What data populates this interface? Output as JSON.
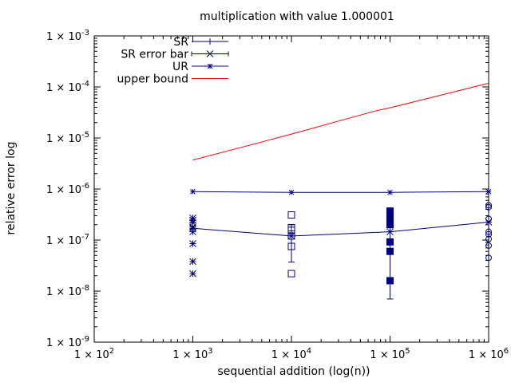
{
  "chart_data": {
    "type": "scatter",
    "title": "multiplication with value 1.000001",
    "xlabel": "sequential addition (log(n))",
    "ylabel": "relative error log",
    "x_scale": "log",
    "y_scale": "log",
    "xlim": [
      100,
      1000000
    ],
    "ylim": [
      1e-09,
      0.001
    ],
    "x_ticks": [
      {
        "value": 100,
        "base": "1 × 10",
        "exp": "2"
      },
      {
        "value": 1000,
        "base": "1 × 10",
        "exp": "3"
      },
      {
        "value": 10000,
        "base": "1 × 10",
        "exp": "4"
      },
      {
        "value": 100000,
        "base": "1 × 10",
        "exp": "5"
      },
      {
        "value": 1000000,
        "base": "1 × 10",
        "exp": "6"
      }
    ],
    "y_ticks": [
      {
        "value": 1e-09,
        "base": "1 × 10",
        "exp": "-9"
      },
      {
        "value": 1e-08,
        "base": "1 × 10",
        "exp": "-8"
      },
      {
        "value": 1e-07,
        "base": "1 × 10",
        "exp": "-7"
      },
      {
        "value": 1e-06,
        "base": "1 × 10",
        "exp": "-6"
      },
      {
        "value": 1e-05,
        "base": "1 × 10",
        "exp": "-5"
      },
      {
        "value": 0.0001,
        "base": "1 × 10",
        "exp": "-4"
      },
      {
        "value": 0.001,
        "base": "1 × 10",
        "exp": "-3"
      }
    ],
    "legend_position": "top-left",
    "grid": false,
    "series": [
      {
        "name": "SR",
        "color": "#00007f",
        "marker": "plus",
        "x": [
          1000,
          10000,
          100000,
          1000000
        ],
        "y": [
          1.7e-07,
          1.2e-07,
          1.45e-07,
          2.25e-07
        ]
      },
      {
        "name": "SR error bar",
        "color": "#00007f",
        "marker": "cross",
        "x": [
          1000,
          10000,
          100000,
          1000000
        ],
        "y": [
          1.7e-07,
          1.2e-07,
          1.45e-07,
          2.25e-07
        ],
        "low": [
          1.7e-07,
          3.7e-08,
          7e-09,
          2.25e-07
        ],
        "high": [
          1.7e-07,
          2e-07,
          2.9e-07,
          2.25e-07
        ]
      },
      {
        "name": "UR",
        "color": "#00007f",
        "marker": "star",
        "x": [
          1000,
          10000,
          100000,
          1000000
        ],
        "y": [
          8.9e-07,
          8.6e-07,
          8.6e-07,
          8.9e-07
        ]
      },
      {
        "name": "upper bound",
        "color": "#ff0000",
        "marker": "none",
        "x": [
          1000,
          4500,
          10000,
          70000,
          100000,
          1000000
        ],
        "y": [
          3.7e-06,
          7.9e-06,
          1.19e-05,
          3.36e-05,
          3.9e-05,
          0.000118
        ]
      }
    ],
    "samples": [
      {
        "x": 1000,
        "marker": "asterisk",
        "y": [
          2.2e-08,
          3.8e-08,
          8.5e-08,
          1.45e-07,
          1.8e-07,
          2.2e-07,
          2.45e-07,
          2.7e-07
        ]
      },
      {
        "x": 10000,
        "marker": "square-open",
        "y": [
          2.2e-08,
          7.5e-08,
          1.2e-07,
          1.55e-07,
          1.75e-07,
          3.1e-07
        ]
      },
      {
        "x": 100000,
        "marker": "square-filled",
        "y": [
          1.6e-08,
          6e-08,
          9.2e-08,
          2e-07,
          2.5e-07,
          2.8e-07,
          3.1e-07,
          3.4e-07,
          3.7e-07
        ]
      },
      {
        "x": 1000000,
        "marker": "circle-open",
        "y": [
          4.5e-08,
          7.8e-08,
          1.05e-07,
          1.3e-07,
          1.45e-07,
          2.6e-07,
          4.4e-07,
          4.8e-07
        ]
      }
    ]
  }
}
